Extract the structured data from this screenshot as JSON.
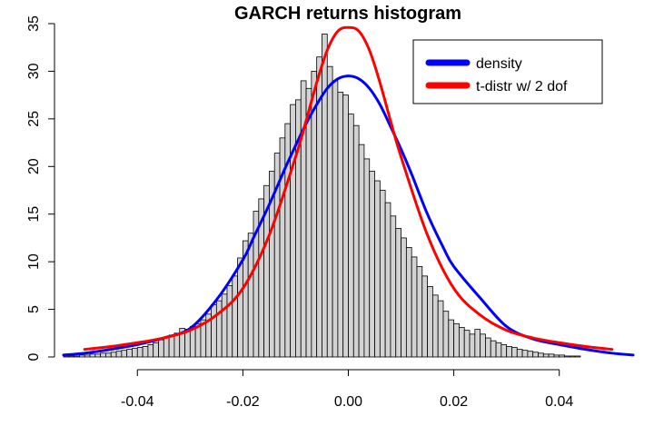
{
  "chart_data": {
    "type": "bar",
    "title": "GARCH returns histogram",
    "xlabel": "",
    "ylabel": "",
    "xlim": [
      -0.054,
      0.054
    ],
    "ylim": [
      0,
      35
    ],
    "x_ticks": [
      "-0.04",
      "-0.02",
      "0.00",
      "0.02",
      "0.04"
    ],
    "x_tick_values": [
      -0.04,
      -0.02,
      0.0,
      0.02,
      0.04
    ],
    "y_ticks": [
      "0",
      "5",
      "10",
      "15",
      "20",
      "25",
      "30",
      "35"
    ],
    "y_tick_values": [
      0,
      5,
      10,
      15,
      20,
      25,
      30,
      35
    ],
    "bin_width": 0.001,
    "bin_start": -0.054,
    "bar_fill": "#d3d3d3",
    "bars": [
      0.1,
      0.1,
      0.1,
      0.2,
      0.2,
      0.3,
      0.3,
      0.4,
      0.4,
      0.5,
      0.6,
      0.7,
      0.8,
      0.9,
      1.0,
      1.1,
      1.3,
      1.5,
      1.8,
      2.0,
      2.3,
      2.5,
      3.0,
      2.9,
      3.2,
      3.5,
      3.9,
      4.5,
      5.5,
      5.9,
      6.6,
      7.5,
      8.5,
      10.4,
      12.2,
      13.0,
      15.3,
      16.6,
      18.0,
      19.5,
      21.4,
      23.0,
      24.5,
      26.5,
      27.0,
      29.0,
      28.2,
      30.0,
      31.5,
      33.9,
      30.5,
      29.0,
      27.8,
      27.5,
      25.5,
      24.3,
      22.3,
      20.8,
      19.5,
      18.5,
      17.5,
      16.2,
      14.8,
      13.5,
      12.5,
      11.5,
      10.5,
      9.5,
      8.5,
      7.4,
      6.5,
      5.9,
      4.8,
      3.9,
      3.5,
      3.1,
      2.8,
      2.4,
      2.9,
      2.4,
      2.0,
      1.7,
      1.5,
      1.3,
      1.1,
      1.0,
      0.8,
      0.7,
      0.6,
      0.5,
      0.4,
      0.3,
      0.3,
      0.2,
      0.2,
      0.1,
      0.1,
      0.1
    ],
    "series": [
      {
        "name": "density",
        "color": "#0000ff",
        "x": [
          -0.054,
          -0.05,
          -0.045,
          -0.04,
          -0.035,
          -0.03,
          -0.025,
          -0.02,
          -0.018,
          -0.015,
          -0.012,
          -0.01,
          -0.008,
          -0.006,
          -0.004,
          -0.002,
          0.0,
          0.002,
          0.004,
          0.006,
          0.008,
          0.01,
          0.012,
          0.015,
          0.018,
          0.02,
          0.025,
          0.03,
          0.035,
          0.04,
          0.045,
          0.05,
          0.054
        ],
        "y": [
          0.2,
          0.4,
          0.8,
          1.3,
          2.0,
          3.0,
          6.0,
          10.2,
          12.5,
          16.0,
          19.8,
          22.2,
          24.5,
          26.5,
          28.2,
          29.2,
          29.5,
          29.2,
          28.2,
          26.5,
          24.2,
          21.8,
          19.2,
          15.0,
          11.5,
          9.5,
          6.2,
          3.2,
          1.9,
          1.3,
          0.8,
          0.4,
          0.2
        ]
      },
      {
        "name": "t-distr w/ 2 dof",
        "color": "#ff0000",
        "x": [
          -0.05,
          -0.045,
          -0.04,
          -0.035,
          -0.03,
          -0.025,
          -0.02,
          -0.015,
          -0.01,
          -0.008,
          -0.006,
          -0.004,
          -0.002,
          0.0,
          0.002,
          0.004,
          0.006,
          0.008,
          0.01,
          0.015,
          0.02,
          0.025,
          0.03,
          0.035,
          0.04,
          0.045,
          0.05
        ],
        "y": [
          0.8,
          1.1,
          1.5,
          2.0,
          2.8,
          4.4,
          7.2,
          12.8,
          21.0,
          24.8,
          28.8,
          32.2,
          34.2,
          34.6,
          34.2,
          32.2,
          28.8,
          24.8,
          21.0,
          12.8,
          7.2,
          4.4,
          2.8,
          2.0,
          1.5,
          1.1,
          0.8
        ]
      }
    ],
    "legend_position": "top-right",
    "grid": false
  }
}
